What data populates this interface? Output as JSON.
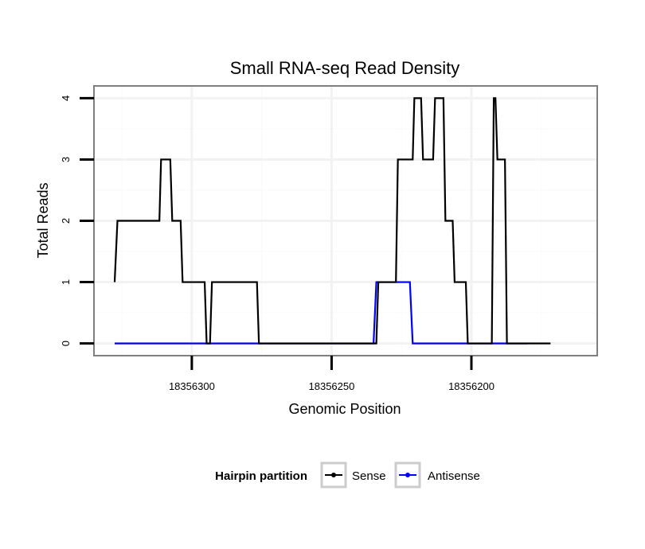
{
  "chart_data": {
    "type": "line",
    "title": "Small RNA-seq Read Density",
    "xlabel": "Genomic Position",
    "ylabel": "Total Reads",
    "xlim": [
      18356335,
      18356155
    ],
    "ylim": [
      -0.2,
      4.2
    ],
    "x_reversed": true,
    "x_ticks": [
      18356300,
      18356250,
      18356200
    ],
    "x_tick_labels": [
      "18356300",
      "18356250",
      "18356200"
    ],
    "y_ticks": [
      0,
      1,
      2,
      3,
      4
    ],
    "y_tick_labels": [
      "0",
      "1",
      "2",
      "3",
      "4"
    ],
    "grid": true,
    "legend": {
      "title": "Hairpin partition",
      "position": "bottom",
      "entries": [
        "Sense",
        "Antisense"
      ]
    },
    "series": [
      {
        "name": "Sense",
        "color": "#000000",
        "x": [
          18356327.6,
          18356326.6,
          18356311.6,
          18356311.0,
          18356307.7,
          18356307.0,
          18356304.0,
          18356303.3,
          18356295.4,
          18356294.7,
          18356293.5,
          18356292.8,
          18356276.7,
          18356276.0,
          18356234.0,
          18356233.3,
          18356227.0,
          18356226.3,
          18356221.0,
          18356220.4,
          18356218.0,
          18356217.3,
          18356213.7,
          18356213.0,
          18356210.0,
          18356209.3,
          18356206.7,
          18356206.0,
          18356202.0,
          18356201.3,
          18356192.7,
          18356192.0,
          18356191.4,
          18356190.7,
          18356188.0,
          18356187.3,
          18356179.7,
          18356179.0,
          18356171.7
        ],
        "values": [
          1,
          2,
          2,
          3,
          3,
          2,
          2,
          1,
          1,
          0,
          0,
          1,
          1,
          0,
          0,
          1,
          1,
          3,
          3,
          4,
          4,
          3,
          3,
          4,
          4,
          2,
          2,
          1,
          1,
          0,
          0,
          4,
          4,
          3,
          3,
          0,
          0,
          0,
          0
        ]
      },
      {
        "name": "Antisense",
        "color": "#0000ff",
        "x": [
          18356327.6,
          18356235.0,
          18356234.0,
          18356222.0,
          18356221.0,
          18356180.0
        ],
        "values": [
          0,
          0,
          1,
          1,
          0,
          0
        ]
      }
    ]
  }
}
